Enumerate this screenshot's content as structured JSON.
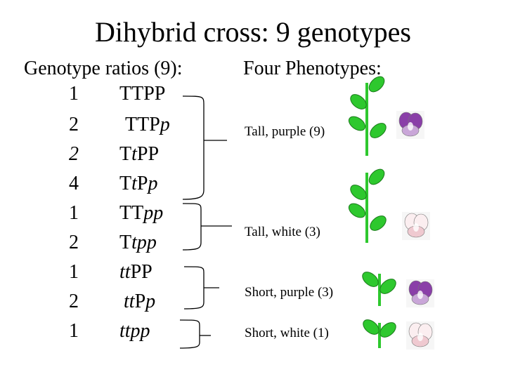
{
  "title": "Dihybrid cross: 9 genotypes",
  "genotype_header": "Genotype ratios (9):",
  "phenotype_header": "Four Phenotypes:",
  "rows": [
    {
      "ratio": "1",
      "genotype": [
        {
          "t": "TTPP",
          "i": false
        }
      ]
    },
    {
      "ratio": "2",
      "genotype": [
        {
          "t": "TTP",
          "i": false
        },
        {
          "t": "p",
          "i": true
        }
      ]
    },
    {
      "ratio": "2",
      "genotype": [
        {
          "t": "T",
          "i": false
        },
        {
          "t": "t",
          "i": true
        },
        {
          "t": "PP",
          "i": false
        }
      ]
    },
    {
      "ratio": "4",
      "genotype": [
        {
          "t": "T",
          "i": false
        },
        {
          "t": "t",
          "i": true
        },
        {
          "t": "P",
          "i": false
        },
        {
          "t": "p",
          "i": true
        }
      ]
    },
    {
      "ratio": "1",
      "genotype": [
        {
          "t": "TT",
          "i": false
        },
        {
          "t": "pp",
          "i": true
        }
      ]
    },
    {
      "ratio": "2",
      "genotype": [
        {
          "t": "T",
          "i": false
        },
        {
          "t": "tpp",
          "i": true
        }
      ]
    },
    {
      "ratio": "1",
      "genotype": [
        {
          "t": "tt",
          "i": true
        },
        {
          "t": "PP",
          "i": false
        }
      ]
    },
    {
      "ratio": "2",
      "genotype": [
        {
          "t": "tt",
          "i": true
        },
        {
          "t": "P",
          "i": false
        },
        {
          "t": "p",
          "i": true
        }
      ]
    },
    {
      "ratio": "1",
      "genotype": [
        {
          "t": "ttpp",
          "i": true
        }
      ]
    }
  ],
  "phenotypes": [
    {
      "label": "Tall, purple (9)",
      "height": "tall",
      "flower": "purple"
    },
    {
      "label": "Tall, white (3)",
      "height": "tall",
      "flower": "white"
    },
    {
      "label": "Short, purple (3)",
      "height": "short",
      "flower": "purple"
    },
    {
      "label": "Short, white (1)",
      "height": "short",
      "flower": "white"
    }
  ],
  "colors": {
    "leaf": "#2ec82e",
    "stem": "#2ec82e",
    "purple_petal": "#8a3fa8",
    "purple_light": "#c9a6d8",
    "white_petal": "#fbeef0",
    "white_shade": "#efc9d0"
  }
}
